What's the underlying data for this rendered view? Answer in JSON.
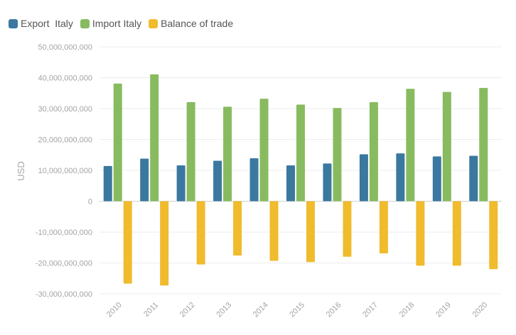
{
  "chart_data": {
    "type": "bar",
    "title": "",
    "xlabel": "",
    "ylabel": "USD",
    "ylim": [
      -30000000000,
      50000000000
    ],
    "yticks": [
      50000000000,
      40000000000,
      30000000000,
      20000000000,
      10000000000,
      0,
      -10000000000,
      -20000000000,
      -30000000000
    ],
    "ytick_labels": [
      "50,000,000,000",
      "40,000,000,000",
      "30,000,000,000",
      "20,000,000,000",
      "10,000,000,000",
      "0",
      "-10,000,000,000",
      "-20,000,000,000",
      "-30,000,000,000"
    ],
    "categories": [
      "2010",
      "2011",
      "2012",
      "2013",
      "2014",
      "2015",
      "2016",
      "2017",
      "2018",
      "2019",
      "2020"
    ],
    "grid": true,
    "legend_position": "top-left",
    "series": [
      {
        "name": "Export  Italy",
        "color": "#3a78a0",
        "values": [
          11400000000,
          13800000000,
          11600000000,
          13100000000,
          13900000000,
          11600000000,
          12200000000,
          15200000000,
          15500000000,
          14500000000,
          14700000000
        ]
      },
      {
        "name": "Import Italy",
        "color": "#88bb5f",
        "values": [
          38100000000,
          41100000000,
          32100000000,
          30600000000,
          33200000000,
          31300000000,
          30200000000,
          32100000000,
          36400000000,
          35400000000,
          36700000000
        ]
      },
      {
        "name": "Balance of trade",
        "color": "#f0bb2d",
        "values": [
          -26700000000,
          -27300000000,
          -20500000000,
          -17600000000,
          -19300000000,
          -19700000000,
          -18000000000,
          -16900000000,
          -20900000000,
          -20900000000,
          -22000000000
        ]
      }
    ]
  }
}
